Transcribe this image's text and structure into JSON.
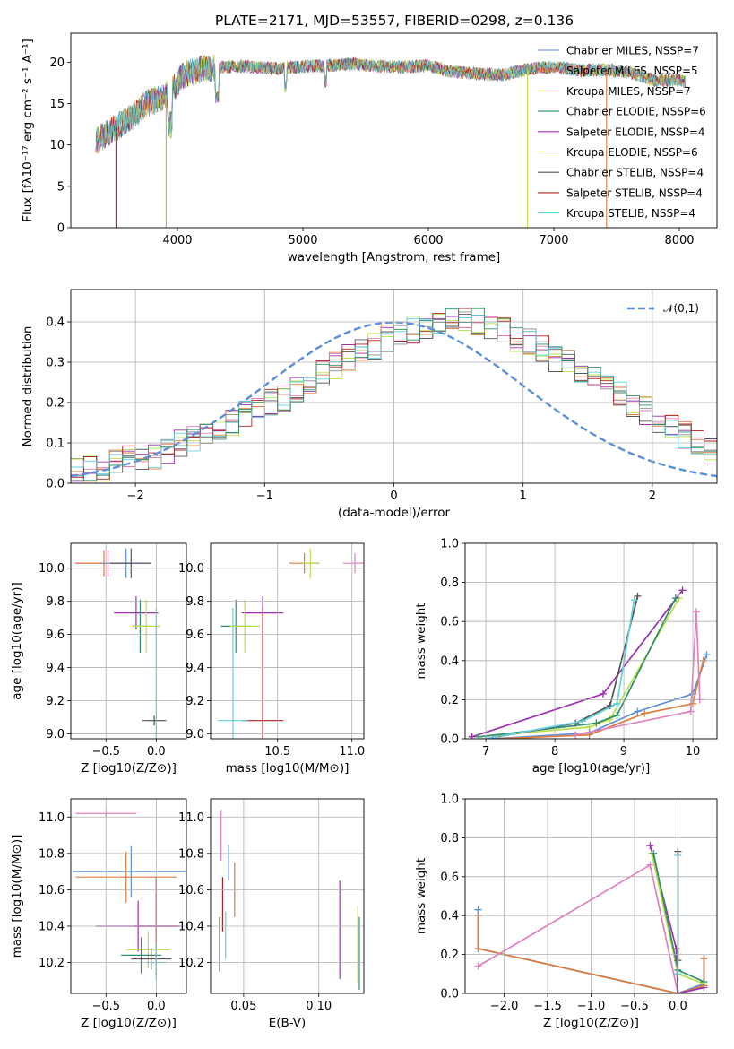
{
  "colors": {
    "chabrier_miles": "#5b8fd9",
    "salpeter_miles": "#e07b39",
    "kroupa_miles": "#c0b23a",
    "chabrier_elodie": "#2f8f6a",
    "salpeter_elodie": "#9b30b0",
    "kroupa_elodie": "#b8e04a",
    "chabrier_stelib": "#555555",
    "salpeter_stelib": "#b22020",
    "kroupa_stelib": "#5fd0e0",
    "pink": "#e27fbf",
    "gray": "#8a8a8a",
    "normal_curve": "#5b8fd9"
  },
  "chart_data": [
    {
      "type": "line",
      "title": "PLATE=2171, MJD=53557, FIBERID=0298, z=0.136",
      "xlabel": "wavelength [Angstrom, rest frame]",
      "ylabel": "Flux [fλ10⁻¹⁷ erg cm⁻² s⁻¹ A⁻¹]",
      "xlim": [
        3150,
        8300
      ],
      "ylim": [
        0,
        23.5
      ],
      "xticks": [
        "4000",
        "5000",
        "6000",
        "7000",
        "8000"
      ],
      "yticks": [
        "0",
        "5",
        "10",
        "15",
        "20"
      ],
      "legend": [
        "Chabrier MILES, NSSP=7",
        "Salpeter MILES, NSSP=5",
        "Kroupa MILES, NSSP=7",
        "Chabrier ELODIE, NSSP=6",
        "Salpeter ELODIE, NSSP=4",
        "Kroupa ELODIE, NSSP=6",
        "Chabrier STELIB, NSSP=4",
        "Salpeter STELIB, NSSP=4",
        "Kroupa STELIB, NSSP=4"
      ],
      "legend_placement": "right",
      "spectrum_envelope": {
        "x": [
          3350,
          3450,
          3550,
          3650,
          3750,
          3850,
          3950,
          4050,
          4200,
          4500,
          4800,
          5000,
          5200,
          5400,
          5600,
          5800,
          6000,
          6200,
          6400,
          6600,
          6800,
          7000,
          7200,
          7400,
          7600,
          7800,
          8000,
          8050
        ],
        "y": [
          10.5,
          11.5,
          12.5,
          13.5,
          15,
          15.5,
          16.5,
          18.5,
          19.2,
          19.5,
          19.2,
          19.5,
          19.6,
          19.8,
          19.5,
          19.4,
          19.6,
          18.8,
          18.6,
          18.5,
          19.2,
          19.4,
          19,
          19.1,
          18.8,
          17.8,
          17.8,
          17.6
        ]
      },
      "dips_to_zero": [
        3510,
        3910,
        6790,
        7420
      ]
    },
    {
      "type": "step",
      "xlabel": "(data-model)/error",
      "ylabel": "Normed distribution",
      "xlim": [
        -2.5,
        2.5
      ],
      "ylim": [
        0,
        0.48
      ],
      "xticks": [
        "−2",
        "−1",
        "0",
        "1",
        "2"
      ],
      "yticks": [
        "0.0",
        "0.1",
        "0.2",
        "0.3",
        "0.4"
      ],
      "legend": [
        "𝒩(0,1)"
      ],
      "legend_placement": "top-right",
      "bin_width": 0.1,
      "bin_start": -2.5,
      "histogram_envelope": [
        0.03,
        0.035,
        0.04,
        0.05,
        0.06,
        0.065,
        0.07,
        0.08,
        0.1,
        0.11,
        0.12,
        0.13,
        0.15,
        0.17,
        0.19,
        0.2,
        0.21,
        0.23,
        0.25,
        0.27,
        0.29,
        0.31,
        0.33,
        0.34,
        0.36,
        0.37,
        0.38,
        0.39,
        0.4,
        0.4,
        0.41,
        0.4,
        0.39,
        0.38,
        0.36,
        0.35,
        0.33,
        0.31,
        0.3,
        0.28,
        0.26,
        0.24,
        0.22,
        0.2,
        0.18,
        0.16,
        0.14,
        0.12,
        0.1,
        0.08
      ]
    },
    {
      "type": "errorbar",
      "xlabel": "Z [log10(Z/Z⊙)]",
      "ylabel": "age  [log10(age/yr)]",
      "xlim": [
        -0.85,
        0.3
      ],
      "ylim": [
        8.97,
        10.15
      ],
      "xticks": [
        "−0.5",
        "0.0"
      ],
      "yticks": [
        "9.0",
        "9.2",
        "9.4",
        "9.6",
        "9.8",
        "10.0"
      ],
      "points": [
        {
          "c": "pink",
          "x": -0.48,
          "y": 10.03,
          "xerr": 0.33,
          "yerr": 0.08
        },
        {
          "c": "salpeter_miles",
          "x": -0.52,
          "y": 10.03,
          "xerr": 0.28,
          "yerr": 0.08
        },
        {
          "c": "chabrier_miles",
          "x": -0.3,
          "y": 10.03,
          "xerr": 0.25,
          "yerr": 0.09
        },
        {
          "c": "chabrier_stelib",
          "x": -0.25,
          "y": 10.03,
          "xerr": 0.2,
          "yerr": 0.09
        },
        {
          "c": "salpeter_elodie",
          "x": -0.2,
          "y": 9.73,
          "xerr": 0.22,
          "yerr": 0.1
        },
        {
          "c": "chabrier_elodie",
          "x": -0.16,
          "y": 9.65,
          "xerr": 0.08,
          "yerr": 0.16
        },
        {
          "c": "kroupa_elodie",
          "x": -0.1,
          "y": 9.65,
          "xerr": 0.14,
          "yerr": 0.16
        },
        {
          "c": "kroupa_stelib",
          "x": 0.0,
          "y": 9.08,
          "xerr": 0.08,
          "yerr": 0.68
        },
        {
          "c": "chabrier_stelib",
          "x": -0.02,
          "y": 9.08,
          "xerr": 0.12,
          "yerr": 0.03
        }
      ]
    },
    {
      "type": "errorbar",
      "xlabel": "mass [log10(M/M⊙)]",
      "ylabel": "",
      "xlim": [
        10.05,
        11.08
      ],
      "ylim": [
        8.97,
        10.15
      ],
      "xticks": [
        "10.5",
        "11.0"
      ],
      "yticks": [
        "9.0",
        "9.2",
        "9.4",
        "9.6",
        "9.8",
        "10.0"
      ],
      "points": [
        {
          "c": "pink",
          "x": 11.02,
          "y": 10.03,
          "xerr": 0.08,
          "yerr": 0.06
        },
        {
          "c": "salpeter_miles",
          "x": 10.68,
          "y": 10.03,
          "xerr": 0.1,
          "yerr": 0.06
        },
        {
          "c": "kroupa_elodie",
          "x": 10.72,
          "y": 10.03,
          "xerr": 0.05,
          "yerr": 0.09
        },
        {
          "c": "salpeter_elodie",
          "x": 10.4,
          "y": 9.73,
          "xerr": 0.14,
          "yerr": 0.1
        },
        {
          "c": "chabrier_elodie",
          "x": 10.22,
          "y": 9.65,
          "xerr": 0.1,
          "yerr": 0.16
        },
        {
          "c": "kroupa_elodie",
          "x": 10.28,
          "y": 9.65,
          "xerr": 0.1,
          "yerr": 0.16
        },
        {
          "c": "salpeter_stelib",
          "x": 10.4,
          "y": 9.08,
          "xerr": 0.14,
          "yerr": 0.68
        },
        {
          "c": "kroupa_stelib",
          "x": 10.2,
          "y": 9.08,
          "xerr": 0.1,
          "yerr": 0.68
        }
      ]
    },
    {
      "type": "line",
      "xlabel": "age  [log10(age/yr)]",
      "ylabel": "mass weight",
      "xlim": [
        6.7,
        10.35
      ],
      "ylim": [
        0,
        1
      ],
      "xticks": [
        "7",
        "8",
        "9",
        "10"
      ],
      "yticks": [
        "0.0",
        "0.2",
        "0.4",
        "0.6",
        "0.8",
        "1.0"
      ],
      "series": [
        {
          "c": "salpeter_elodie",
          "x": [
            6.8,
            8.7,
            9.85
          ],
          "y": [
            0.01,
            0.23,
            0.76
          ]
        },
        {
          "c": "kroupa_elodie",
          "x": [
            6.9,
            8.5,
            8.8,
            9.8
          ],
          "y": [
            0.01,
            0.06,
            0.1,
            0.72
          ]
        },
        {
          "c": "chabrier_elodie",
          "x": [
            6.9,
            8.6,
            8.9,
            9.75
          ],
          "y": [
            0.01,
            0.08,
            0.12,
            0.72
          ]
        },
        {
          "c": "chabrier_stelib",
          "x": [
            7.0,
            8.3,
            8.8,
            9.2
          ],
          "y": [
            0.0,
            0.08,
            0.17,
            0.73
          ]
        },
        {
          "c": "kroupa_stelib",
          "x": [
            7.0,
            8.4,
            8.9,
            9.15
          ],
          "y": [
            0.0,
            0.09,
            0.18,
            0.71
          ]
        },
        {
          "c": "chabrier_miles",
          "x": [
            7.1,
            8.5,
            9.2,
            10.0,
            10.2
          ],
          "y": [
            0.0,
            0.03,
            0.14,
            0.23,
            0.43
          ]
        },
        {
          "c": "salpeter_miles",
          "x": [
            7.2,
            8.5,
            9.3,
            10.0,
            10.15
          ],
          "y": [
            0.0,
            0.02,
            0.13,
            0.18,
            0.4
          ]
        },
        {
          "c": "pink",
          "x": [
            8.3,
            9.97,
            10.05,
            10.1
          ],
          "y": [
            0.02,
            0.14,
            0.65,
            0.2
          ]
        }
      ]
    },
    {
      "type": "errorbar",
      "xlabel": "Z [log10(Z/Z⊙)]",
      "ylabel": "mass [log10(M/M⊙)]",
      "xlim": [
        -0.85,
        0.3
      ],
      "ylim": [
        10.03,
        11.1
      ],
      "xticks": [
        "−0.5",
        "0.0"
      ],
      "yticks": [
        "10.2",
        "10.4",
        "10.6",
        "10.8",
        "11.0"
      ],
      "points": [
        {
          "c": "pink",
          "x": -0.5,
          "y": 11.02,
          "xerr": 0.3,
          "yerr": 0.02
        },
        {
          "c": "chabrier_miles",
          "x": -0.25,
          "y": 10.7,
          "xerr": 0.58,
          "yerr": 0.14
        },
        {
          "c": "salpeter_miles",
          "x": -0.3,
          "y": 10.67,
          "xerr": 0.5,
          "yerr": 0.14
        },
        {
          "c": "salpeter_stelib",
          "x": 0.0,
          "y": 10.4,
          "xerr": 0.22,
          "yerr": 0.27
        },
        {
          "c": "salpeter_elodie",
          "x": -0.18,
          "y": 10.4,
          "xerr": 0.42,
          "yerr": 0.14
        },
        {
          "c": "kroupa_elodie",
          "x": -0.08,
          "y": 10.27,
          "xerr": 0.22,
          "yerr": 0.1
        },
        {
          "c": "chabrier_elodie",
          "x": -0.15,
          "y": 10.24,
          "xerr": 0.2,
          "yerr": 0.1
        },
        {
          "c": "chabrier_stelib",
          "x": -0.05,
          "y": 10.22,
          "xerr": 0.2,
          "yerr": 0.06
        },
        {
          "c": "kroupa_stelib",
          "x": 0.0,
          "y": 10.2,
          "xerr": 0.1,
          "yerr": 0.1
        }
      ]
    },
    {
      "type": "errorbar",
      "xlabel": "E(B-V)",
      "ylabel": "",
      "xlim": [
        0.028,
        0.13
      ],
      "ylim": [
        10.03,
        11.1
      ],
      "xticks": [
        "0.05",
        "0.10"
      ],
      "yticks": [
        "10.2",
        "10.4",
        "10.6",
        "10.8",
        "11.0"
      ],
      "points": [
        {
          "c": "pink",
          "x": 0.035,
          "y": 10.9,
          "yerr": 0.14
        },
        {
          "c": "chabrier_stelib",
          "x": 0.034,
          "y": 10.3,
          "yerr": 0.15
        },
        {
          "c": "salpeter_stelib",
          "x": 0.036,
          "y": 10.52,
          "yerr": 0.15
        },
        {
          "c": "kroupa_stelib",
          "x": 0.038,
          "y": 10.35,
          "yerr": 0.13
        },
        {
          "c": "chabrier_miles",
          "x": 0.04,
          "y": 10.75,
          "yerr": 0.1
        },
        {
          "c": "salpeter_miles",
          "x": 0.044,
          "y": 10.6,
          "yerr": 0.15
        },
        {
          "c": "salpeter_elodie",
          "x": 0.114,
          "y": 10.38,
          "yerr": 0.27
        },
        {
          "c": "kroupa_elodie",
          "x": 0.126,
          "y": 10.3,
          "yerr": 0.21
        },
        {
          "c": "chabrier_elodie",
          "x": 0.127,
          "y": 10.25,
          "yerr": 0.2
        }
      ]
    },
    {
      "type": "line",
      "xlabel": "Z [log10(Z/Z⊙)]",
      "ylabel": "mass weight",
      "xlim": [
        -2.45,
        0.45
      ],
      "ylim": [
        0,
        1
      ],
      "xticks": [
        "−2.0",
        "−1.5",
        "−1.0",
        "−0.5",
        "0.0"
      ],
      "yticks": [
        "0.0",
        "0.2",
        "0.4",
        "0.6",
        "0.8",
        "1.0"
      ],
      "series": [
        {
          "c": "chabrier_miles",
          "x": [
            -2.3,
            -2.3,
            0.0,
            0.3,
            0.3
          ],
          "y": [
            0.43,
            0.23,
            0.0,
            0.05,
            0.18
          ]
        },
        {
          "c": "salpeter_miles",
          "x": [
            -2.3,
            -2.3,
            0.0,
            0.3,
            0.3
          ],
          "y": [
            0.4,
            0.23,
            0.0,
            0.04,
            0.18
          ]
        },
        {
          "c": "pink",
          "x": [
            -2.3,
            -0.32,
            0.0
          ],
          "y": [
            0.14,
            0.66,
            0.0
          ]
        },
        {
          "c": "salpeter_elodie",
          "x": [
            -0.32,
            -0.02,
            0.0,
            0.3
          ],
          "y": [
            0.76,
            0.23,
            0.0,
            0.03
          ]
        },
        {
          "c": "kroupa_elodie",
          "x": [
            -0.3,
            0.0,
            0.3
          ],
          "y": [
            0.72,
            0.1,
            0.05
          ]
        },
        {
          "c": "chabrier_elodie",
          "x": [
            -0.28,
            0.0,
            0.3
          ],
          "y": [
            0.72,
            0.12,
            0.06
          ]
        },
        {
          "c": "chabrier_stelib",
          "x": [
            0.0,
            0.0
          ],
          "y": [
            0.73,
            0.17
          ]
        },
        {
          "c": "kroupa_stelib",
          "x": [
            0.0,
            0.0
          ],
          "y": [
            0.71,
            0.1
          ]
        }
      ]
    }
  ]
}
